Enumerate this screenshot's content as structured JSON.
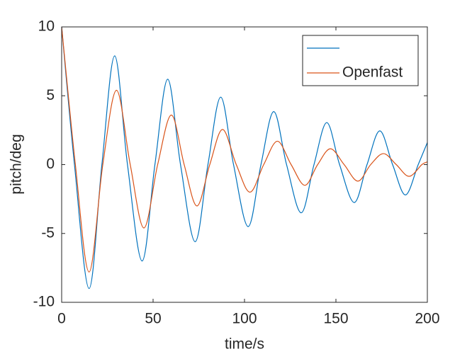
{
  "chart_data": {
    "type": "line",
    "xlabel": "time/s",
    "ylabel": "pitch/deg",
    "xlim": [
      0,
      200
    ],
    "xticks": [
      0,
      50,
      100,
      150,
      200
    ],
    "ylim": [
      -10,
      10
    ],
    "yticks": [
      -10,
      -5,
      0,
      5,
      10
    ],
    "legend": "northeast",
    "series": [
      {
        "color": "#0072BD",
        "x": [
          0,
          7,
          15,
          22,
          29,
          36,
          44,
          51,
          58,
          65,
          73,
          80,
          87,
          94,
          102,
          109,
          116,
          123,
          131,
          138,
          145,
          152,
          160,
          167,
          174,
          181,
          188,
          195,
          200
        ],
        "values": [
          10,
          0,
          -9,
          0,
          7.9,
          0,
          -7,
          0,
          6.2,
          0,
          -5.6,
          0,
          4.9,
          0,
          -4.5,
          0,
          3.85,
          0,
          -3.5,
          0,
          3.05,
          0,
          -2.75,
          0,
          2.45,
          0,
          -2.2,
          0,
          1.6
        ]
      },
      {
        "name": "Openfast",
        "color": "#D95319",
        "x": [
          0,
          7.5,
          15,
          22.5,
          30,
          37.5,
          45,
          52.5,
          60,
          67,
          74,
          81,
          88,
          95.5,
          103,
          110.5,
          118,
          125.5,
          133,
          140,
          147,
          154.5,
          162,
          169,
          176,
          183,
          190,
          197,
          200
        ],
        "values": [
          10,
          0,
          -7.8,
          0,
          5.4,
          0,
          -4.6,
          0,
          3.6,
          0,
          -3,
          0,
          2.55,
          0,
          -2,
          0,
          1.7,
          0,
          -1.5,
          0,
          1.15,
          0,
          -1.2,
          0,
          0.8,
          0,
          -0.85,
          0,
          0.2
        ]
      }
    ]
  }
}
